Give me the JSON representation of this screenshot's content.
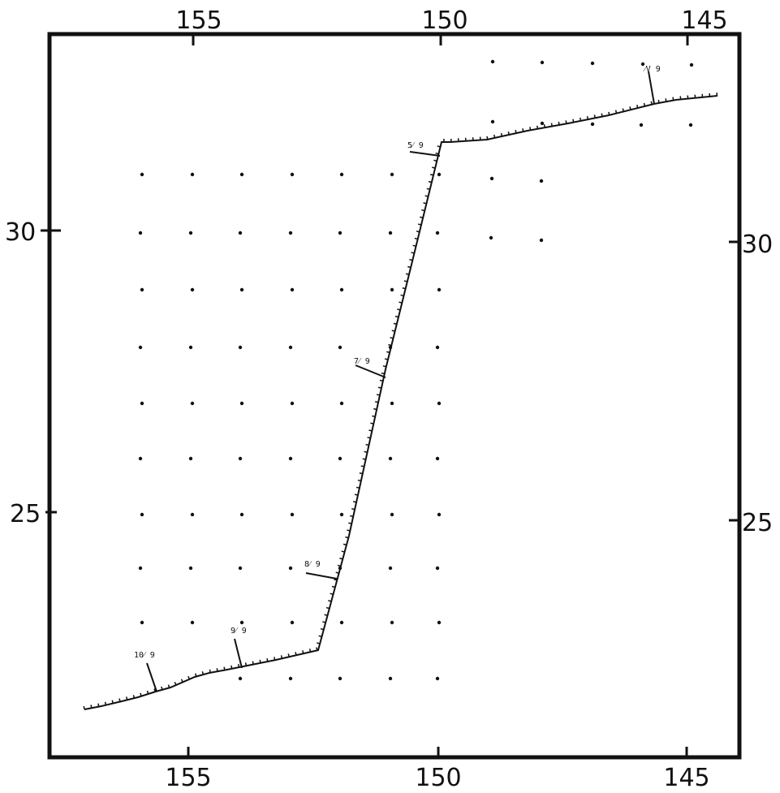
{
  "axes": {
    "top_ticks": [
      "155",
      "150",
      "145"
    ],
    "bottom_ticks": [
      "155",
      "150",
      "145"
    ],
    "left_ticks": [
      "30",
      "25"
    ],
    "right_ticks": [
      "30",
      "25"
    ]
  },
  "track_labels": [
    "⁄V 9",
    "5⁄ 9",
    "7⁄ 9",
    "8⁄ 9",
    "9⁄ 9",
    "10⁄ 9"
  ],
  "colors": {
    "ink": "#111111",
    "paper": "#ffffff"
  }
}
